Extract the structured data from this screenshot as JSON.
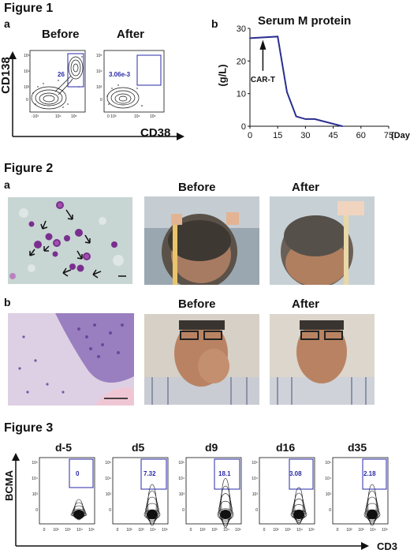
{
  "figure1": {
    "title": "Figure 1",
    "panel_a": {
      "letter": "a",
      "before_label": "Before",
      "after_label": "After",
      "before_gate": "26",
      "after_gate": "3.06e-3",
      "y_axis_label": "CD138",
      "x_axis_label": "CD38"
    },
    "panel_b": {
      "letter": "b",
      "chart_data": {
        "type": "line",
        "title": "Serum M protein",
        "xlabel": "(Day)",
        "ylabel": "(g/L)",
        "x": [
          0,
          15,
          20,
          25,
          30,
          35,
          50
        ],
        "values": [
          27,
          27.5,
          10.5,
          3,
          2.2,
          2.2,
          0
        ],
        "xlim": [
          0,
          75
        ],
        "ylim": [
          0,
          30
        ],
        "xticks": [
          0,
          15,
          30,
          45,
          60,
          75
        ],
        "yticks": [
          0,
          10,
          20,
          30
        ],
        "annotation": "CAR-T",
        "annotation_x": 7,
        "line_color": "#2b2f8f",
        "grid": false
      }
    }
  },
  "figure2": {
    "title": "Figure 2",
    "row_a": {
      "letter": "a",
      "before_label": "Before",
      "after_label": "After"
    },
    "row_b": {
      "letter": "b",
      "before_label": "Before",
      "after_label": "After"
    }
  },
  "figure3": {
    "title": "Figure 3",
    "y_axis_label": "BCMA",
    "x_axis_label": "CD3",
    "panels": [
      {
        "day": "d-5",
        "gate": "0"
      },
      {
        "day": "d5",
        "gate": "7.32"
      },
      {
        "day": "d9",
        "gate": "18.1"
      },
      {
        "day": "d16",
        "gate": "3.08"
      },
      {
        "day": "d35",
        "gate": "2.18"
      }
    ]
  }
}
